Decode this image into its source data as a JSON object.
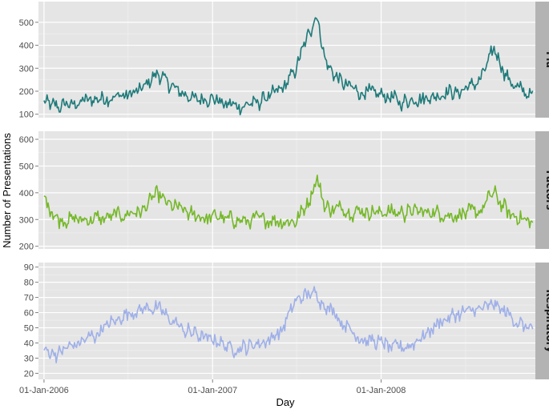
{
  "chart_data": {
    "type": "line",
    "xlabel": "Day",
    "ylabel": "Number of Presentations",
    "x_ticks": [
      "01-Jan-2006",
      "01-Jan-2007",
      "01-Jan-2008"
    ],
    "x_range": [
      "2005-12-20",
      "2008-11-30"
    ],
    "grid": true,
    "legend": "none",
    "facets": [
      {
        "label": "Flu",
        "color": "#1f7a7a",
        "ylim": [
          85,
          590
        ],
        "y_ticks": [
          100,
          200,
          300,
          400,
          500
        ],
        "series": {
          "x": [
            "2006-01-01",
            "2006-02-01",
            "2006-03-01",
            "2006-04-01",
            "2006-05-01",
            "2006-06-01",
            "2006-07-01",
            "2006-08-01",
            "2006-09-01",
            "2006-10-01",
            "2006-11-01",
            "2006-12-01",
            "2007-01-01",
            "2007-02-01",
            "2007-03-01",
            "2007-04-01",
            "2007-05-01",
            "2007-06-01",
            "2007-07-01",
            "2007-08-01",
            "2007-08-15",
            "2007-09-01",
            "2007-10-01",
            "2007-11-01",
            "2007-12-01",
            "2008-01-01",
            "2008-02-01",
            "2008-03-01",
            "2008-04-01",
            "2008-05-01",
            "2008-06-01",
            "2008-07-01",
            "2008-08-01",
            "2008-09-01",
            "2008-10-01",
            "2008-11-01",
            "2008-11-25"
          ],
          "values": [
            150,
            130,
            145,
            160,
            170,
            175,
            185,
            205,
            280,
            230,
            185,
            160,
            170,
            145,
            135,
            150,
            170,
            210,
            300,
            470,
            540,
            340,
            245,
            210,
            190,
            185,
            160,
            160,
            175,
            180,
            195,
            210,
            240,
            385,
            260,
            195,
            180
          ]
        }
      },
      {
        "label": "Factors",
        "color": "#76b82a",
        "ylim": [
          190,
          630
        ],
        "y_ticks": [
          200,
          300,
          400,
          500,
          600
        ],
        "series": {
          "x": [
            "2006-01-01",
            "2006-02-01",
            "2006-03-01",
            "2006-04-01",
            "2006-05-01",
            "2006-06-01",
            "2006-07-01",
            "2006-08-01",
            "2006-09-01",
            "2006-10-01",
            "2006-11-01",
            "2006-12-01",
            "2007-01-01",
            "2007-02-01",
            "2007-03-01",
            "2007-04-01",
            "2007-05-01",
            "2007-06-01",
            "2007-07-01",
            "2007-08-01",
            "2007-08-15",
            "2007-09-01",
            "2007-10-01",
            "2007-11-01",
            "2007-12-01",
            "2008-01-01",
            "2008-02-01",
            "2008-03-01",
            "2008-04-01",
            "2008-05-01",
            "2008-06-01",
            "2008-07-01",
            "2008-08-01",
            "2008-09-01",
            "2008-10-01",
            "2008-11-01",
            "2008-11-25"
          ],
          "values": [
            390,
            300,
            300,
            300,
            305,
            310,
            320,
            335,
            390,
            355,
            330,
            310,
            315,
            300,
            295,
            300,
            300,
            300,
            290,
            380,
            450,
            350,
            340,
            330,
            330,
            325,
            320,
            330,
            330,
            325,
            320,
            320,
            330,
            400,
            330,
            300,
            290
          ]
        }
      },
      {
        "label": "Respiratory",
        "color": "#9fb0e8",
        "ylim": [
          16,
          93
        ],
        "y_ticks": [
          20,
          30,
          40,
          50,
          60,
          70,
          80,
          90
        ],
        "series": {
          "x": [
            "2006-01-01",
            "2006-02-01",
            "2006-03-01",
            "2006-04-01",
            "2006-05-01",
            "2006-06-01",
            "2006-07-01",
            "2006-08-01",
            "2006-09-01",
            "2006-10-01",
            "2006-11-01",
            "2006-12-01",
            "2007-01-01",
            "2007-02-01",
            "2007-03-01",
            "2007-04-01",
            "2007-05-01",
            "2007-06-01",
            "2007-07-01",
            "2007-08-01",
            "2007-08-15",
            "2007-09-01",
            "2007-10-01",
            "2007-11-01",
            "2007-12-01",
            "2008-01-01",
            "2008-02-01",
            "2008-03-01",
            "2008-04-01",
            "2008-05-01",
            "2008-06-01",
            "2008-07-01",
            "2008-08-01",
            "2008-09-01",
            "2008-10-01",
            "2008-11-01",
            "2008-11-25"
          ],
          "values": [
            36,
            33,
            38,
            42,
            47,
            54,
            60,
            63,
            63,
            55,
            48,
            45,
            42,
            38,
            36,
            39,
            42,
            50,
            68,
            72,
            72,
            65,
            57,
            47,
            42,
            40,
            37,
            38,
            45,
            52,
            58,
            60,
            62,
            65,
            58,
            52,
            50
          ]
        }
      }
    ]
  }
}
